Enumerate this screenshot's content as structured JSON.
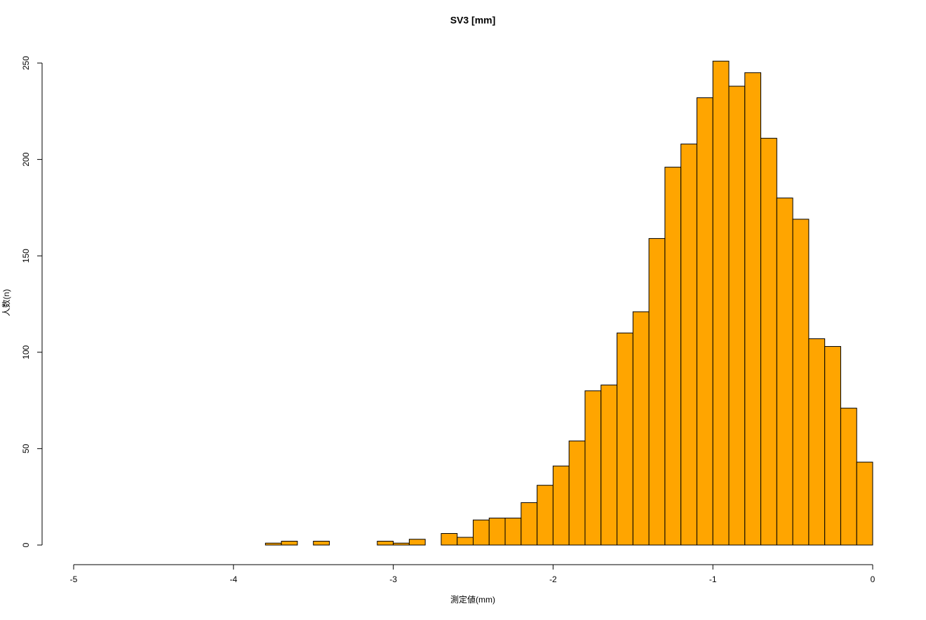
{
  "chart_data": {
    "type": "histogram",
    "title": "SV3 [mm]",
    "x_label": "測定値(mm)",
    "y_label": "人数(n)",
    "bins": [
      -3.8,
      -3.7,
      -3.6,
      -3.5,
      -3.4,
      -3.3,
      -3.2,
      -3.1,
      -3.0,
      -2.9,
      -2.8,
      -2.7,
      -2.6,
      -2.5,
      -2.4,
      -2.3,
      -2.2,
      -2.1,
      -2.0,
      -1.9,
      -1.8,
      -1.7,
      -1.6,
      -1.5,
      -1.4,
      -1.3,
      -1.2,
      -1.1,
      -1.0,
      -0.9,
      -0.8,
      -0.7,
      -0.6,
      -0.5,
      -0.4,
      -0.3,
      -0.2,
      -0.1,
      0
    ],
    "counts": [
      1,
      2,
      0,
      2,
      0,
      0,
      0,
      2,
      1,
      3,
      0,
      6,
      4,
      13,
      14,
      14,
      22,
      31,
      41,
      54,
      80,
      83,
      110,
      121,
      159,
      196,
      208,
      232,
      251,
      238,
      245,
      211,
      180,
      169,
      107,
      103,
      71,
      43
    ],
    "color": "#ffa500",
    "xlim": [
      -5,
      0
    ],
    "xticks": [
      -5,
      -4,
      -3,
      -2,
      -1,
      0
    ],
    "ylim": [
      0,
      250
    ],
    "yticks": [
      0,
      50,
      100,
      150,
      200,
      250
    ]
  }
}
